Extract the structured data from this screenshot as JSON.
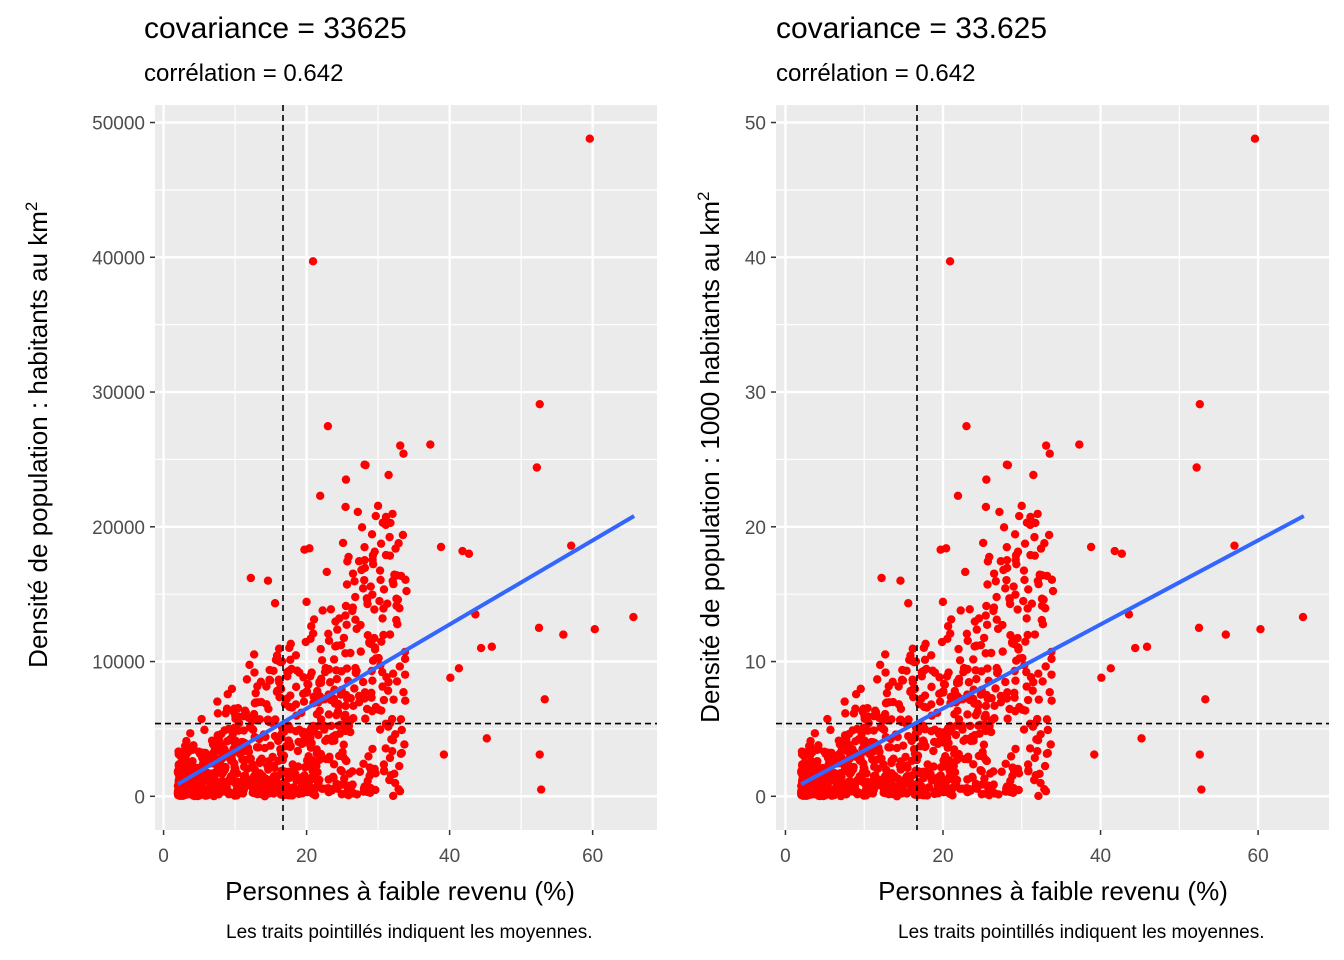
{
  "panels": [
    {
      "title": "covariance = 33625",
      "subtitle": "corrélation = 0.642",
      "xlabel": "Personnes à faible revenu (%)",
      "ylabel_main": "Densité de population : habitants au km",
      "ylabel_sup": "2",
      "caption": "Les traits pointillés indiquent les moyennes."
    },
    {
      "title": "covariance = 33.625",
      "subtitle": "corrélation = 0.642",
      "xlabel": "Personnes à faible revenu (%)",
      "ylabel_main": "Densité de population : 1000 habitants au km",
      "ylabel_sup": "2",
      "caption": "Les traits pointillés indiquent les moyennes."
    }
  ],
  "colors": {
    "panel_bg": "#ebebeb",
    "grid": "#ffffff",
    "points": "#ff0000",
    "fit": "#3366ff",
    "mean_lines": "#000000",
    "tick_text": "#4d4d4d"
  },
  "chart_data": [
    {
      "type": "scatter",
      "title": "covariance = 33625",
      "subtitle": "corrélation = 0.642",
      "xlabel": "Personnes à faible revenu (%)",
      "ylabel": "Densité de population : habitants au km2",
      "caption": "Les traits pointillés indiquent les moyennes.",
      "xlim": [
        -1.2,
        69
      ],
      "ylim": [
        -2500,
        51300
      ],
      "xticks": [
        0,
        20,
        40,
        60
      ],
      "yticks": [
        0,
        10000,
        20000,
        30000,
        40000,
        50000
      ],
      "grid": true,
      "mean_x": 16.7,
      "mean_y": 5400,
      "fit_line": {
        "x": [
          2,
          65.8
        ],
        "y": [
          900,
          20800
        ]
      },
      "outliers": [
        [
          59.6,
          48800
        ],
        [
          20.9,
          39700
        ],
        [
          52.6,
          29100
        ],
        [
          37.3,
          26100
        ],
        [
          52.2,
          24400
        ],
        [
          21.9,
          22300
        ],
        [
          57,
          18600
        ],
        [
          65.7,
          13300
        ],
        [
          60.3,
          12400
        ],
        [
          52.5,
          12500
        ],
        [
          55.9,
          12000
        ],
        [
          53.3,
          7200
        ],
        [
          45.2,
          4300
        ],
        [
          52.6,
          3100
        ],
        [
          52.8,
          500
        ],
        [
          42.7,
          18000
        ],
        [
          41.8,
          18200
        ],
        [
          38.8,
          18500
        ],
        [
          43.6,
          13500
        ],
        [
          45.9,
          11100
        ],
        [
          44.4,
          11000
        ],
        [
          39.2,
          3100
        ],
        [
          40.1,
          8800
        ],
        [
          41.3,
          9500
        ],
        [
          25.1,
          18800
        ],
        [
          19.7,
          18300
        ],
        [
          20.4,
          18400
        ],
        [
          14.6,
          16000
        ],
        [
          12.2,
          16200
        ]
      ],
      "series": [
        {
          "name": "",
          "points": []
        }
      ]
    },
    {
      "type": "scatter",
      "title": "covariance = 33.625",
      "subtitle": "corrélation = 0.642",
      "xlabel": "Personnes à faible revenu (%)",
      "ylabel": "Densité de population : 1000 habitants au km2",
      "caption": "Les traits pointillés indiquent les moyennes.",
      "xlim": [
        -1.2,
        69
      ],
      "ylim": [
        -2.5,
        51.3
      ],
      "xticks": [
        0,
        20,
        40,
        60
      ],
      "yticks": [
        0,
        10,
        20,
        30,
        40,
        50
      ],
      "grid": true,
      "mean_x": 16.7,
      "mean_y": 5.4,
      "fit_line": {
        "x": [
          2,
          65.8
        ],
        "y": [
          0.9,
          20.8
        ]
      },
      "outliers": [
        [
          59.6,
          48.8
        ],
        [
          20.9,
          39.7
        ],
        [
          52.6,
          29.1
        ],
        [
          37.3,
          26.1
        ],
        [
          52.2,
          24.4
        ],
        [
          21.9,
          22.3
        ],
        [
          57,
          18.6
        ],
        [
          65.7,
          13.3
        ],
        [
          60.3,
          12.4
        ],
        [
          52.5,
          12.5
        ],
        [
          55.9,
          12.0
        ],
        [
          53.3,
          7.2
        ],
        [
          45.2,
          4.3
        ],
        [
          52.6,
          3.1
        ],
        [
          52.8,
          0.5
        ],
        [
          42.7,
          18.0
        ],
        [
          41.8,
          18.2
        ],
        [
          38.8,
          18.5
        ],
        [
          43.6,
          13.5
        ],
        [
          45.9,
          11.1
        ],
        [
          44.4,
          11.0
        ],
        [
          39.2,
          3.1
        ],
        [
          40.1,
          8.8
        ],
        [
          41.3,
          9.5
        ],
        [
          25.1,
          18.8
        ],
        [
          19.7,
          18.3
        ],
        [
          20.4,
          18.4
        ],
        [
          14.6,
          16.0
        ],
        [
          12.2,
          16.2
        ]
      ],
      "series": [
        {
          "name": "",
          "points": []
        }
      ]
    }
  ]
}
